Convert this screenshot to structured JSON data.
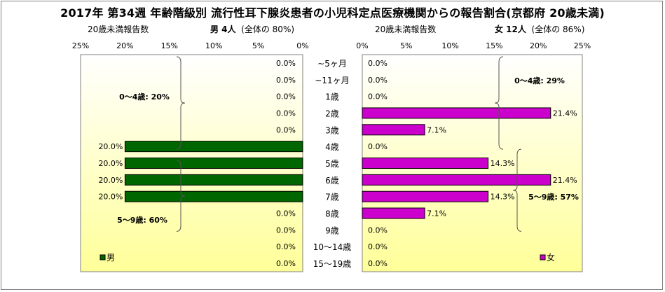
{
  "title": "2017年 第34週 年齢階級別 流行性耳下腺炎患者の小児科定点医療機関からの報告割合(京都府 20歳未満)",
  "male_header": {
    "axis_caption": "20歳未満報告数",
    "label": "男 4人",
    "share": "(全体の 80%)"
  },
  "female_header": {
    "axis_caption": "20歳未満報告数",
    "label": "女 12人",
    "share": "(全体の 86%)"
  },
  "colors": {
    "male_bar": "#006600",
    "female_bar": "#cc00cc",
    "plot_gradient_top": "#ffffff",
    "plot_gradient_bottom": "#ffff99"
  },
  "brackets": {
    "male": [
      {
        "label": "0～4歳: 20%",
        "from": "~5ヶ月",
        "to": "4歳"
      },
      {
        "label": "5～9歳: 60%",
        "from": "5歳",
        "to": "9歳"
      }
    ],
    "female": [
      {
        "label": "0～4歳: 29%",
        "from": "~5ヶ月",
        "to": "4歳"
      },
      {
        "label": "5～9歳: 57%",
        "from": "5歳",
        "to": "9歳"
      }
    ]
  },
  "chart_data": [
    {
      "type": "bar",
      "orientation": "horizontal",
      "direction": "right-to-left",
      "categories": [
        "~5ヶ月",
        "~11ヶ月",
        "1歳",
        "2歳",
        "3歳",
        "4歳",
        "5歳",
        "6歳",
        "7歳",
        "8歳",
        "9歳",
        "10～14歳",
        "15～19歳"
      ],
      "series": [
        {
          "name": "男",
          "values": [
            0.0,
            0.0,
            0.0,
            0.0,
            0.0,
            20.0,
            20.0,
            20.0,
            20.0,
            0.0,
            0.0,
            0.0,
            0.0
          ]
        }
      ],
      "value_labels": [
        "0.0%",
        "0.0%",
        "0.0%",
        "0.0%",
        "0.0%",
        "20.0%",
        "20.0%",
        "20.0%",
        "20.0%",
        "0.0%",
        "0.0%",
        "0.0%",
        "0.0%"
      ],
      "xlim": [
        0,
        25
      ],
      "xticks": [
        "25%",
        "20%",
        "15%",
        "10%",
        "5%",
        "0%"
      ],
      "legend": "bottom-left",
      "grid": false
    },
    {
      "type": "bar",
      "orientation": "horizontal",
      "direction": "left-to-right",
      "categories": [
        "~5ヶ月",
        "~11ヶ月",
        "1歳",
        "2歳",
        "3歳",
        "4歳",
        "5歳",
        "6歳",
        "7歳",
        "8歳",
        "9歳",
        "10～14歳",
        "15～19歳"
      ],
      "series": [
        {
          "name": "女",
          "values": [
            0.0,
            0.0,
            0.0,
            21.4,
            7.1,
            0.0,
            14.3,
            21.4,
            14.3,
            7.1,
            0.0,
            0.0,
            0.0
          ]
        }
      ],
      "value_labels": [
        "0.0%",
        "0.0%",
        "0.0%",
        "21.4%",
        "7.1%",
        "0.0%",
        "14.3%",
        "21.4%",
        "14.3%",
        "7.1%",
        "0.0%",
        "0.0%",
        "0.0%"
      ],
      "xlim": [
        0,
        25
      ],
      "xticks": [
        "0%",
        "5%",
        "10%",
        "15%",
        "20%",
        "25%"
      ],
      "legend": "bottom-left",
      "grid": false
    }
  ]
}
